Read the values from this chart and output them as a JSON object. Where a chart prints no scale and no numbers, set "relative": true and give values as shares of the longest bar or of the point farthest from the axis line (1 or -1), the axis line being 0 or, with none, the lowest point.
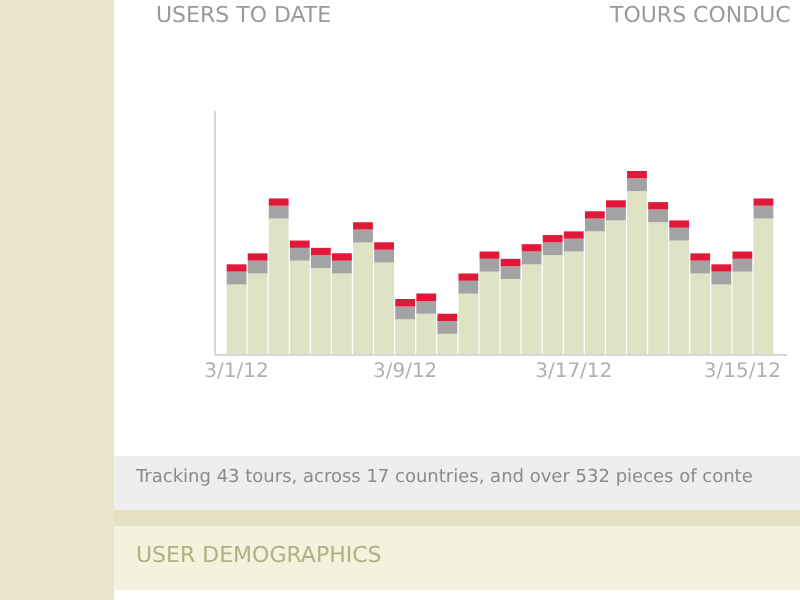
{
  "chart_data": {
    "type": "bar",
    "title": "USERS TO DATE",
    "stacked": true,
    "relative": true,
    "annotations": [
      "TOURS CONDUC",
      "Tracking 43 tours, across 17 countries, and over 532 pieces of conte",
      "USER DEMOGRAPHICS"
    ],
    "categories": [
      "3/1/12",
      null,
      null,
      null,
      null,
      null,
      null,
      null,
      "3/9/12",
      null,
      null,
      null,
      null,
      null,
      null,
      null,
      "3/17/12",
      null,
      null,
      null,
      null,
      null,
      null,
      null,
      "3/15/12",
      null
    ],
    "series": [
      {
        "color": "#dfe2c4",
        "values": [
          0.38,
          0.44,
          0.74,
          0.51,
          0.47,
          0.44,
          0.61,
          0.5,
          0.19,
          0.22,
          0.11,
          0.33,
          0.45,
          0.41,
          0.49,
          0.54,
          0.56,
          0.67,
          0.73,
          0.89,
          0.72,
          0.62,
          0.44,
          0.38,
          0.45,
          0.74
        ]
      },
      {
        "color": "#a3a3a3",
        "values": [
          0.07,
          0.07,
          0.07,
          0.07,
          0.07,
          0.07,
          0.07,
          0.07,
          0.07,
          0.07,
          0.07,
          0.07,
          0.07,
          0.07,
          0.07,
          0.07,
          0.07,
          0.07,
          0.07,
          0.07,
          0.07,
          0.07,
          0.07,
          0.07,
          0.07,
          0.07
        ]
      },
      {
        "color": "#e0193a",
        "values": [
          0.04,
          0.04,
          0.04,
          0.04,
          0.04,
          0.04,
          0.04,
          0.04,
          0.04,
          0.04,
          0.04,
          0.04,
          0.04,
          0.04,
          0.04,
          0.04,
          0.04,
          0.04,
          0.04,
          0.04,
          0.04,
          0.04,
          0.04,
          0.04,
          0.04,
          0.04
        ]
      }
    ]
  }
}
